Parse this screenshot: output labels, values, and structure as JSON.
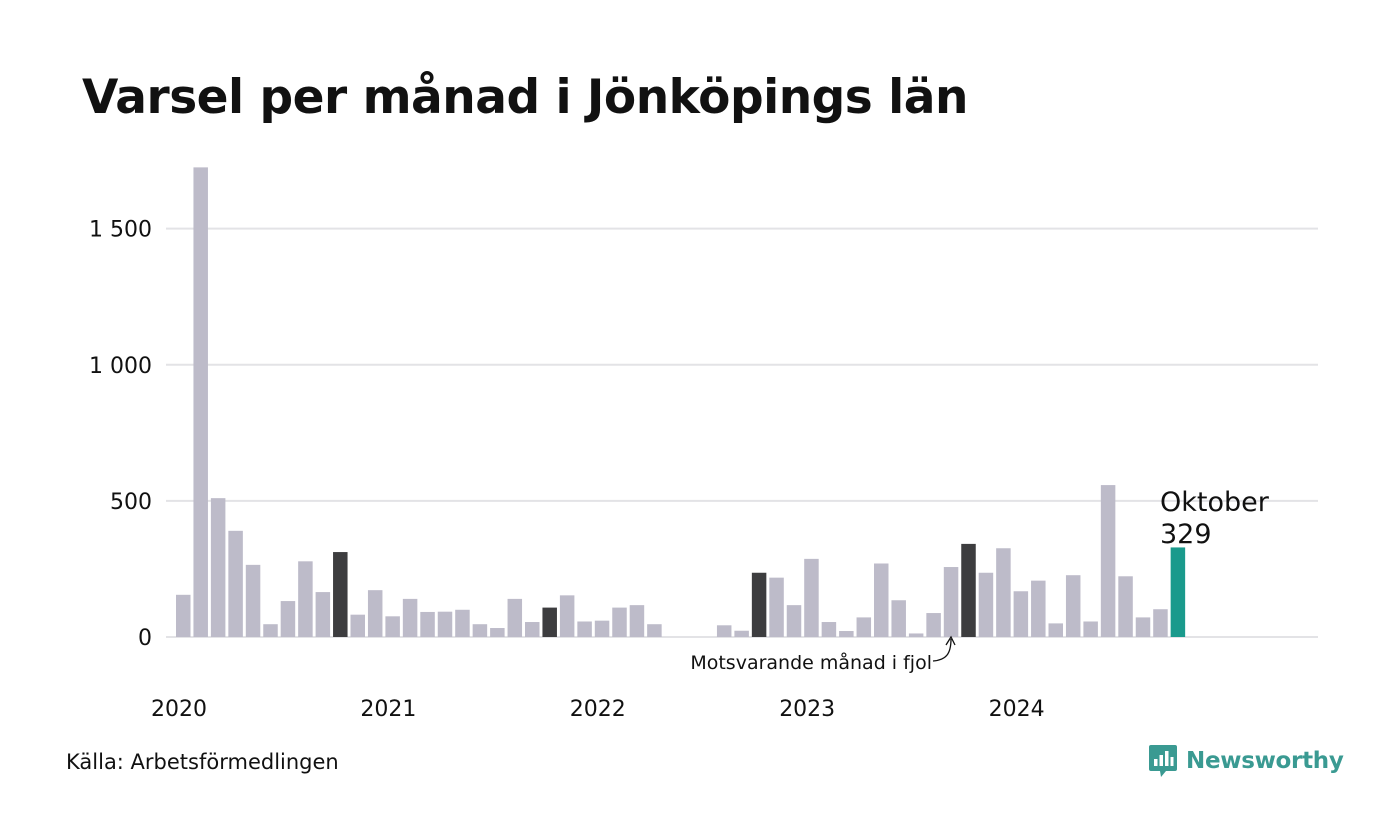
{
  "colors": {
    "bar": "#bdbbc9",
    "highlight": "#3d3d3f",
    "current": "#1a9a8c",
    "grid": "#e3e3e6",
    "brand": "#3a9a92"
  },
  "chart_data": {
    "type": "bar",
    "title": "Varsel per månad i Jönköpings län",
    "xlabel": "",
    "ylabel": "",
    "ylim": [
      0,
      1750
    ],
    "yticks": [
      0,
      500,
      1000,
      1500
    ],
    "ytick_labels": [
      "0",
      "500",
      "1 000",
      "1 500"
    ],
    "xtick_labels": [
      "2020",
      "2021",
      "2022",
      "2023",
      "2024"
    ],
    "start": "2020-01",
    "x": [
      "2020-01",
      "2020-02",
      "2020-03",
      "2020-04",
      "2020-05",
      "2020-06",
      "2020-07",
      "2020-08",
      "2020-09",
      "2020-10",
      "2020-11",
      "2020-12",
      "2021-01",
      "2021-02",
      "2021-03",
      "2021-04",
      "2021-05",
      "2021-06",
      "2021-07",
      "2021-08",
      "2021-09",
      "2021-10",
      "2021-11",
      "2021-12",
      "2022-01",
      "2022-02",
      "2022-03",
      "2022-04",
      "2022-05",
      "2022-06",
      "2022-07",
      "2022-08",
      "2022-09",
      "2022-10",
      "2022-11",
      "2022-12",
      "2023-01",
      "2023-02",
      "2023-03",
      "2023-04",
      "2023-05",
      "2023-06",
      "2023-07",
      "2023-08",
      "2023-09",
      "2023-10",
      "2023-11",
      "2023-12",
      "2024-01",
      "2024-02",
      "2024-03",
      "2024-04",
      "2024-05",
      "2024-06",
      "2024-07",
      "2024-08",
      "2024-09",
      "2024-10"
    ],
    "values": [
      155,
      1725,
      510,
      390,
      265,
      47,
      132,
      278,
      165,
      312,
      82,
      172,
      76,
      140,
      92,
      93,
      100,
      47,
      33,
      140,
      55,
      108,
      153,
      57,
      60,
      108,
      117,
      47,
      0,
      0,
      0,
      43,
      23,
      236,
      218,
      117,
      287,
      55,
      22,
      72,
      270,
      135,
      13,
      88,
      257,
      342,
      236,
      326,
      168,
      207,
      50,
      227,
      57,
      558,
      223,
      72,
      102,
      329
    ],
    "highlighted": [
      "2020-10",
      "2021-10",
      "2022-10",
      "2023-10"
    ],
    "current": "2024-10",
    "callout": {
      "label": "Oktober",
      "value": "329"
    },
    "annotation": "Motsvarande månad i fjol"
  },
  "footer": {
    "source": "Källa: Arbetsförmedlingen",
    "brand": "Newsworthy"
  }
}
